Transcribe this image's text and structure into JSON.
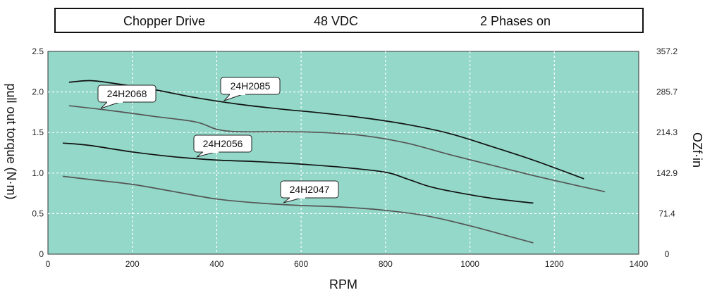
{
  "header": {
    "drive": "Chopper Drive",
    "voltage": "48 VDC",
    "phases": "2 Phases on"
  },
  "chart_data": {
    "type": "line",
    "xlabel": "RPM",
    "ylabel": "pull out torque (N·m)",
    "ylabel_right": "OZf·in",
    "xlim": [
      0,
      1400
    ],
    "ylim": [
      0,
      2.5
    ],
    "x_ticks": [
      "0",
      "200",
      "400",
      "600",
      "800",
      "1000",
      "1200",
      "1400"
    ],
    "y_ticks_left": [
      "0",
      "0.5",
      "1.0",
      "1.5",
      "2.0",
      "2.5"
    ],
    "y_ticks_right": [
      "0",
      "71.4",
      "142.9",
      "214.3",
      "285.7",
      "357.2"
    ],
    "grid": true,
    "plot_background": "#93d8c8",
    "series": [
      {
        "name": "24H2085",
        "color": "#111111",
        "x": [
          50,
          100,
          150,
          250,
          350,
          450,
          550,
          650,
          750,
          850,
          950,
          1050,
          1150,
          1270
        ],
        "y": [
          2.12,
          2.14,
          2.11,
          2.03,
          1.93,
          1.85,
          1.79,
          1.74,
          1.68,
          1.6,
          1.49,
          1.33,
          1.16,
          0.93
        ]
      },
      {
        "name": "24H2068",
        "color": "#555555",
        "x": [
          50,
          150,
          250,
          350,
          400,
          450,
          550,
          650,
          750,
          850,
          950,
          1050,
          1150,
          1250,
          1320
        ],
        "y": [
          1.83,
          1.77,
          1.7,
          1.63,
          1.54,
          1.51,
          1.51,
          1.5,
          1.46,
          1.37,
          1.23,
          1.1,
          0.97,
          0.85,
          0.77
        ]
      },
      {
        "name": "24H2056",
        "color": "#111111",
        "x": [
          35,
          100,
          200,
          300,
          400,
          500,
          600,
          700,
          800,
          850,
          900,
          950,
          1050,
          1150
        ],
        "y": [
          1.37,
          1.34,
          1.26,
          1.2,
          1.16,
          1.14,
          1.11,
          1.07,
          1.01,
          0.93,
          0.84,
          0.78,
          0.69,
          0.63
        ]
      },
      {
        "name": "24H2047",
        "color": "#555555",
        "x": [
          35,
          100,
          200,
          300,
          400,
          500,
          600,
          700,
          800,
          900,
          1000,
          1100,
          1150
        ],
        "y": [
          0.96,
          0.92,
          0.86,
          0.77,
          0.68,
          0.63,
          0.6,
          0.58,
          0.54,
          0.47,
          0.35,
          0.21,
          0.14
        ]
      }
    ]
  }
}
